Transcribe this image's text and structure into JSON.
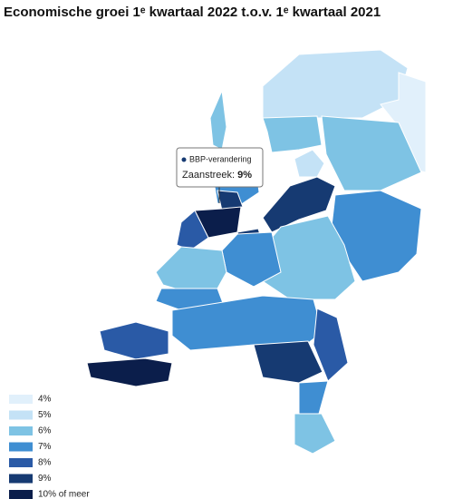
{
  "title": "Economische groei 1ᵉ kwartaal 2022 t.o.v. 1ᵉ kwartaal 2021",
  "tooltip": {
    "heading": "BBP-verandering",
    "region": "Zaanstreek:",
    "value": "9%"
  },
  "legend": {
    "items": [
      {
        "label": "4%",
        "color": "#e1f0fb"
      },
      {
        "label": "5%",
        "color": "#c4e2f6"
      },
      {
        "label": "6%",
        "color": "#7ec3e4"
      },
      {
        "label": "7%",
        "color": "#3f8ed2"
      },
      {
        "label": "8%",
        "color": "#2a5aa6"
      },
      {
        "label": "9%",
        "color": "#163a72"
      },
      {
        "label": "10% of meer",
        "color": "#0b1e4b"
      }
    ]
  }
}
